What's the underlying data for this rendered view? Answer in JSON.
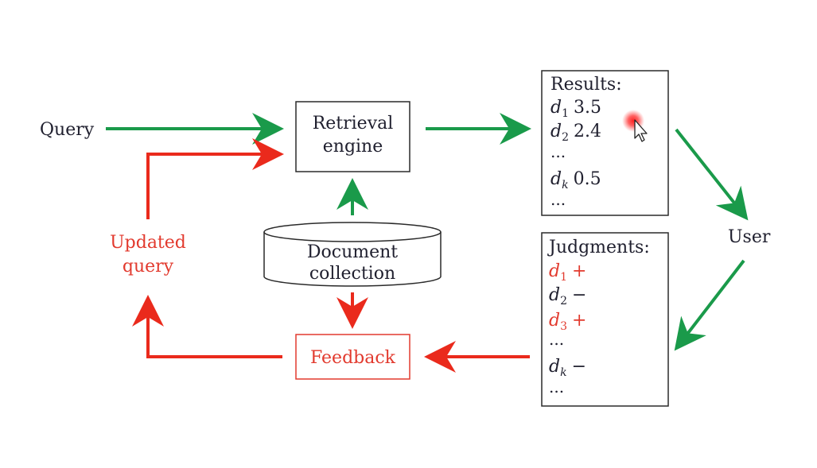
{
  "colors": {
    "green": "#1a9a4a",
    "red": "#ea2a1c",
    "text": "#1f1f2e",
    "red_text": "#e23a2e",
    "box_stroke": "#2a2a2a"
  },
  "labels": {
    "query": "Query",
    "retrieval_line1": "Retrieval",
    "retrieval_line2": "engine",
    "doc_line1": "Document",
    "doc_line2": "collection",
    "feedback": "Feedback",
    "updated_line1": "Updated",
    "updated_line2": "query",
    "user": "User"
  },
  "results": {
    "title": "Results:",
    "items": [
      {
        "doc": "d",
        "sub": "1",
        "value": "3.5"
      },
      {
        "doc": "d",
        "sub": "2",
        "value": "2.4"
      },
      {
        "ellipsis": "..."
      },
      {
        "doc": "d",
        "sub": "k",
        "value": "0.5"
      },
      {
        "ellipsis": "..."
      }
    ]
  },
  "judgments": {
    "title": "Judgments:",
    "items": [
      {
        "doc": "d",
        "sub": "1",
        "mark": "+",
        "relevant": true
      },
      {
        "doc": "d",
        "sub": "2",
        "mark": "−",
        "relevant": false
      },
      {
        "doc": "d",
        "sub": "3",
        "mark": "+",
        "relevant": true
      },
      {
        "ellipsis": "..."
      },
      {
        "doc": "d",
        "sub": "k",
        "mark": "−",
        "relevant": false
      },
      {
        "ellipsis": "..."
      }
    ]
  },
  "icons": {
    "cursor": "mouse-pointer-icon",
    "highlight": "click-highlight-icon"
  }
}
